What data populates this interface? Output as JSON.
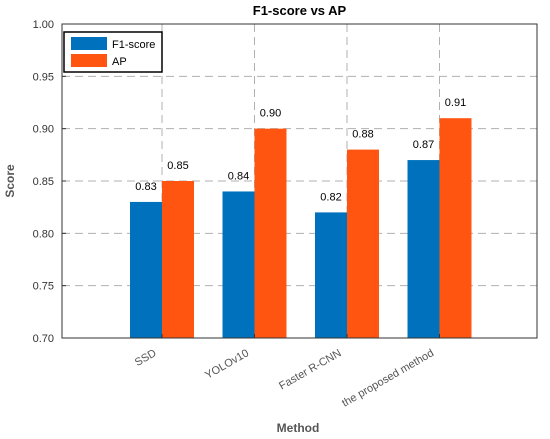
{
  "chart_data": {
    "type": "bar",
    "title": "F1-score vs AP",
    "xlabel": "Method",
    "ylabel": "Score",
    "categories": [
      "SSD",
      "YOLOv10",
      "Faster R-CNN",
      "the proposed method"
    ],
    "series": [
      {
        "name": "F1-score",
        "values": [
          0.83,
          0.84,
          0.82,
          0.87
        ],
        "color": "#0072BD"
      },
      {
        "name": "AP",
        "values": [
          0.85,
          0.9,
          0.88,
          0.91
        ],
        "color": "#FF5510"
      }
    ],
    "ylim": [
      0.7,
      1.0
    ],
    "yticks": [
      "0.70",
      "0.75",
      "0.80",
      "0.85",
      "0.90",
      "0.95",
      "1.00"
    ],
    "value_labels": {
      "F1-score": [
        "0.83",
        "0.84",
        "0.82",
        "0.87"
      ],
      "AP": [
        "0.85",
        "0.90",
        "0.88",
        "0.91"
      ]
    },
    "grid": true,
    "legend_position": "top-left"
  }
}
